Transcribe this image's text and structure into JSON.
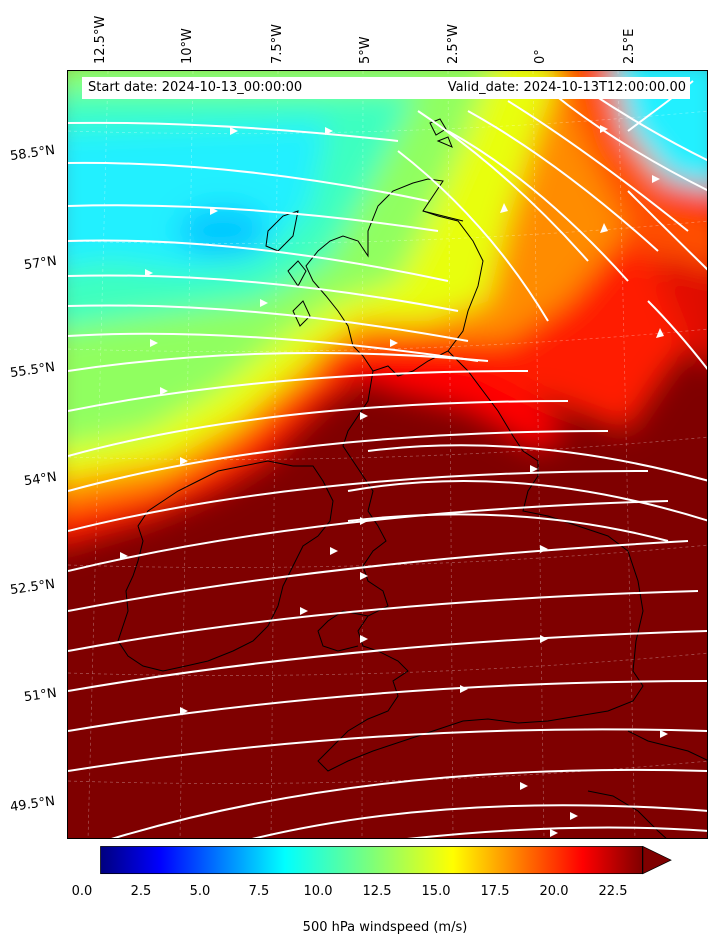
{
  "header": {
    "start_date": "Start date: 2024-10-13_00:00:00",
    "valid_date": "Valid_date: 2024-10-13T12:00:00.00"
  },
  "lon_labels": [
    "12.5°W",
    "10°W",
    "7.5°W",
    "5°W",
    "2.5°W",
    "0°",
    "2.5°E"
  ],
  "lat_labels": [
    "58.5°N",
    "57°N",
    "55.5°N",
    "54°N",
    "52.5°N",
    "51°N",
    "49.5°N"
  ],
  "colorbar": {
    "title": "500 hPa windspeed (m/s)",
    "ticks": [
      "0.0",
      "2.5",
      "5.0",
      "7.5",
      "10.0",
      "12.5",
      "15.0",
      "17.5",
      "20.0",
      "22.5"
    ],
    "min": 0,
    "max": 25,
    "extend": "max",
    "colormap": "jet"
  },
  "colors": {
    "streamline": "#ffffff",
    "coastline": "#000000",
    "over": "#7f0000"
  }
}
